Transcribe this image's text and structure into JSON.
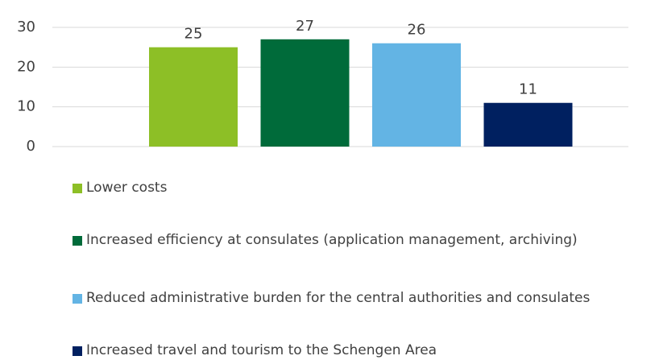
{
  "chart_data": {
    "type": "bar",
    "categories": [
      null
    ],
    "series": [
      {
        "name": "Lower costs",
        "color": "#8dbf26",
        "values": [
          25
        ]
      },
      {
        "name": "Increased efficiency at consulates (application management, archiving)",
        "color": "#006b3a",
        "values": [
          27
        ]
      },
      {
        "name": "Reduced administrative burden for the central authorities and consulates",
        "color": "#63b4e4",
        "values": [
          26
        ]
      },
      {
        "name": "Increased travel and tourism to the Schengen Area",
        "color": "#002060",
        "values": [
          11
        ]
      }
    ],
    "ylim": [
      0,
      30
    ],
    "yticks": [
      0,
      10,
      20,
      30
    ],
    "grid": true,
    "legend": "bottom"
  }
}
